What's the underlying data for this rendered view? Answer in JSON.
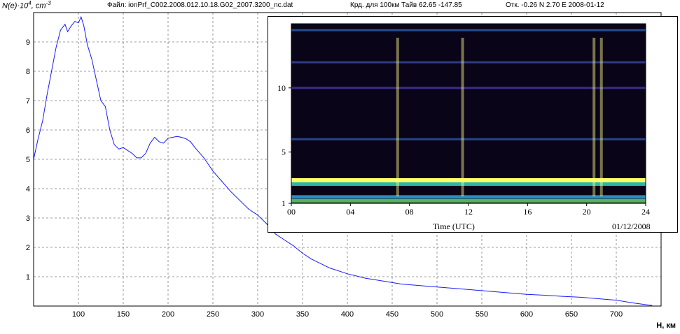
{
  "header": {
    "file_label": "Файл: ionPrf_C002.2008.012.10.18.G02_2007.3200_nc.dat",
    "coords_label": "Крд. для 100км Тайв 62.65 -147.85",
    "offset_label": "Отк. -0.26 N 2.70 E 2008-01-12"
  },
  "colors": {
    "profile_line": "#1a1aff",
    "grid": "#808080",
    "spectrogram_bg": "#0a0418"
  },
  "chart_data": [
    {
      "type": "line",
      "ylabel_main": "N(e)·10",
      "ylabel_exp": "4",
      "ylabel_unit": ", cm",
      "ylabel_unit_exp": "-3",
      "xlabel": "H, км",
      "xlim": [
        50,
        750
      ],
      "ylim": [
        0,
        10
      ],
      "x_ticks": [
        100,
        150,
        200,
        250,
        300,
        350,
        400,
        450,
        500,
        550,
        600,
        650,
        700
      ],
      "y_ticks": [
        1,
        2,
        3,
        4,
        5,
        6,
        7,
        8,
        9
      ],
      "grid": true,
      "x": [
        50,
        55,
        60,
        65,
        70,
        75,
        80,
        85,
        88,
        92,
        96,
        100,
        103,
        106,
        110,
        115,
        120,
        125,
        130,
        135,
        140,
        145,
        150,
        155,
        160,
        165,
        170,
        175,
        180,
        185,
        190,
        195,
        200,
        205,
        210,
        215,
        220,
        225,
        230,
        240,
        250,
        260,
        270,
        280,
        290,
        300,
        310,
        320,
        330,
        340,
        350,
        360,
        370,
        380,
        400,
        420,
        440,
        460,
        480,
        500,
        520,
        540,
        560,
        580,
        600,
        620,
        640,
        660,
        680,
        700,
        720,
        740
      ],
      "values": [
        5.0,
        5.7,
        6.3,
        7.2,
        8.0,
        8.8,
        9.4,
        9.6,
        9.35,
        9.55,
        9.7,
        9.65,
        9.85,
        9.55,
        8.9,
        8.4,
        7.7,
        7.0,
        6.8,
        6.0,
        5.5,
        5.35,
        5.4,
        5.3,
        5.2,
        5.05,
        5.05,
        5.2,
        5.55,
        5.75,
        5.6,
        5.55,
        5.72,
        5.75,
        5.78,
        5.75,
        5.7,
        5.6,
        5.4,
        5.05,
        4.6,
        4.25,
        3.9,
        3.6,
        3.3,
        3.1,
        2.8,
        2.45,
        2.25,
        2.05,
        1.8,
        1.6,
        1.45,
        1.3,
        1.1,
        0.95,
        0.85,
        0.75,
        0.7,
        0.65,
        0.6,
        0.55,
        0.5,
        0.45,
        0.4,
        0.37,
        0.33,
        0.3,
        0.25,
        0.2,
        0.1,
        0.02
      ]
    },
    {
      "type": "heatmap",
      "xlabel": "Time (UTC)",
      "date_label": "01/12/2008",
      "xlim": [
        0,
        24
      ],
      "ylim": [
        1,
        15
      ],
      "x_ticks": [
        "00",
        "04",
        "08",
        "12",
        "16",
        "20",
        "24"
      ],
      "y_ticks": [
        "1",
        "5",
        "10"
      ],
      "bands": [
        {
          "freq": 2.8,
          "intensity": "high",
          "color": "#ffff66"
        },
        {
          "freq": 2.5,
          "intensity": "medium",
          "color": "#2fd6c8"
        },
        {
          "freq": 1.5,
          "intensity": "medium",
          "color": "#2aa8d8"
        },
        {
          "freq": 1.2,
          "intensity": "medium",
          "color": "#6acf6a"
        },
        {
          "freq": 6.0,
          "intensity": "low",
          "color": "#3a6fd8"
        },
        {
          "freq": 10.0,
          "intensity": "low",
          "color": "#5a4ad0"
        },
        {
          "freq": 12.0,
          "intensity": "low",
          "color": "#4a5fd0"
        },
        {
          "freq": 14.5,
          "intensity": "low",
          "color": "#3a7fe0"
        }
      ],
      "spikes_utc": [
        7.2,
        11.6,
        20.5,
        21.0
      ]
    }
  ]
}
